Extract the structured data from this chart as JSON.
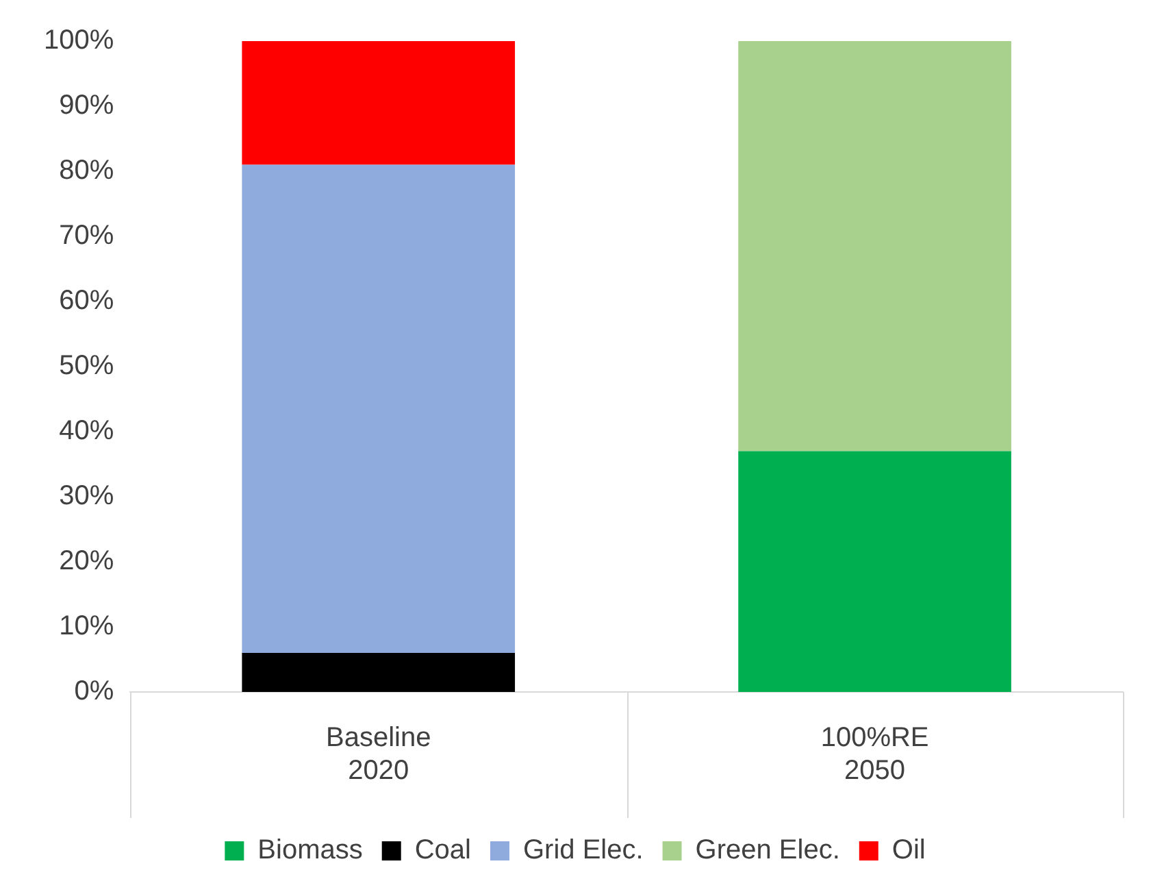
{
  "chart_data": {
    "type": "bar",
    "stacked": true,
    "categories": [
      "Baseline\n2020",
      "100%RE\n2050"
    ],
    "series": [
      {
        "name": "Biomass",
        "color": "#00b050",
        "values": [
          null,
          37
        ]
      },
      {
        "name": "Coal",
        "color": "#000000",
        "values": [
          6,
          null
        ]
      },
      {
        "name": "Grid Elec.",
        "color": "#8faadc",
        "values": [
          75,
          null
        ]
      },
      {
        "name": "Green Elec.",
        "color": "#a9d18e",
        "values": [
          null,
          63
        ]
      },
      {
        "name": "Oil",
        "color": "#ff0000",
        "values": [
          19,
          null
        ]
      }
    ],
    "ylim": [
      0,
      100
    ],
    "yticks": [
      {
        "value": 0,
        "label": "0%"
      },
      {
        "value": 10,
        "label": "10%"
      },
      {
        "value": 20,
        "label": "20%"
      },
      {
        "value": 30,
        "label": "30%"
      },
      {
        "value": 40,
        "label": "40%"
      },
      {
        "value": 50,
        "label": "50%"
      },
      {
        "value": 60,
        "label": "60%"
      },
      {
        "value": 70,
        "label": "70%"
      },
      {
        "value": 80,
        "label": "80%"
      },
      {
        "value": 90,
        "label": "90%"
      },
      {
        "value": 100,
        "label": "100%"
      }
    ],
    "grid": false,
    "legend": "bottom"
  }
}
